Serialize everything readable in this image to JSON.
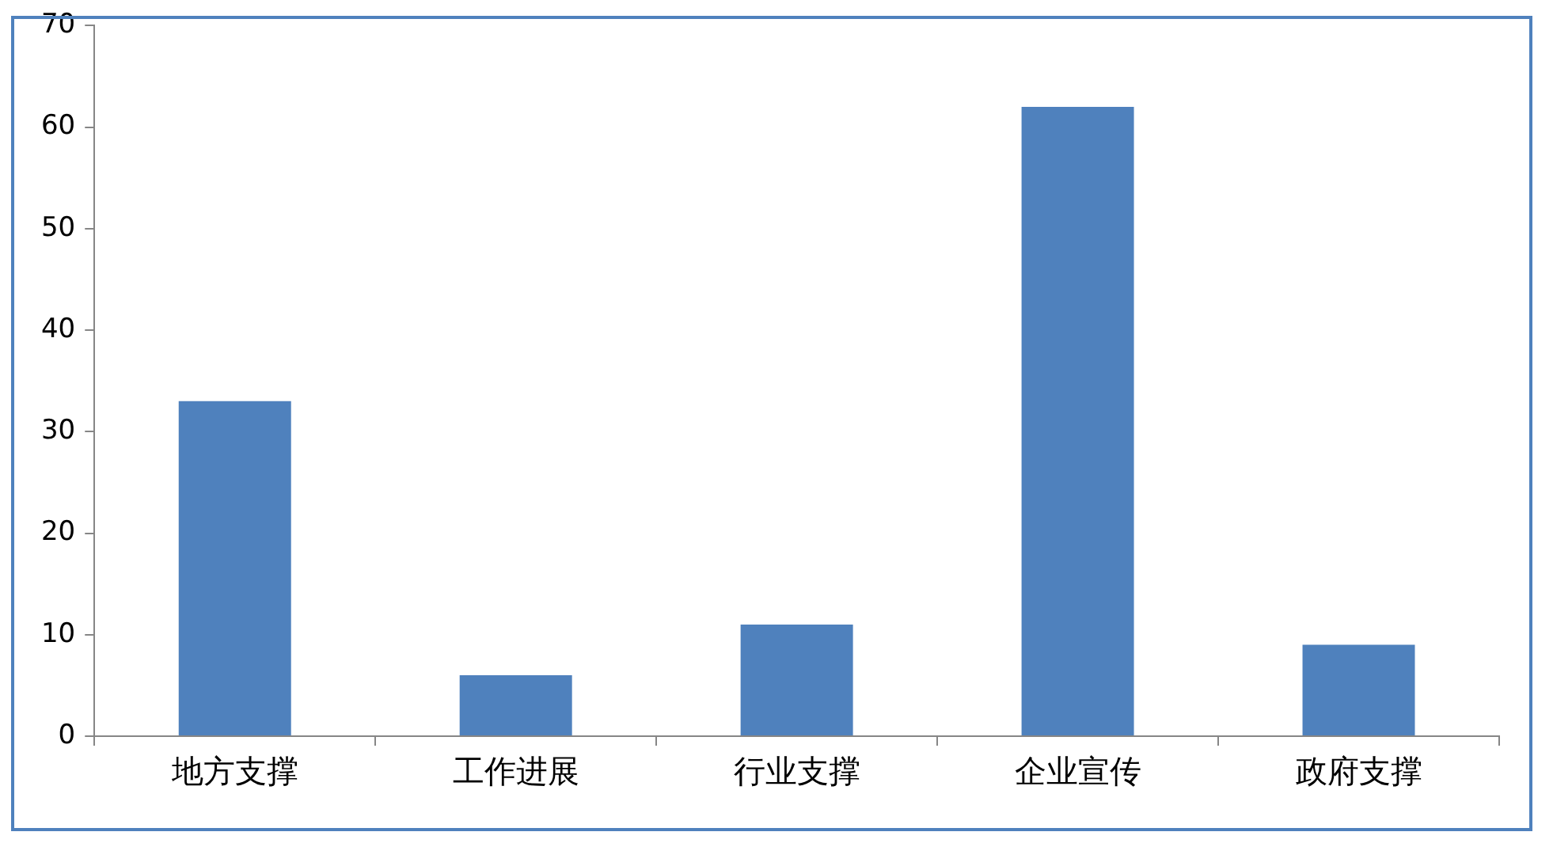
{
  "chart_data": {
    "type": "bar",
    "categories": [
      "地方支撑",
      "工作进展",
      "行业支撑",
      "企业宣传",
      "政府支撑"
    ],
    "values": [
      33,
      6,
      11,
      62,
      9
    ],
    "color": "#4f81bd",
    "ylim": [
      0,
      70
    ],
    "yticks": [
      0,
      10,
      20,
      30,
      40,
      50,
      60,
      70
    ],
    "grid": false,
    "legend": false
  }
}
